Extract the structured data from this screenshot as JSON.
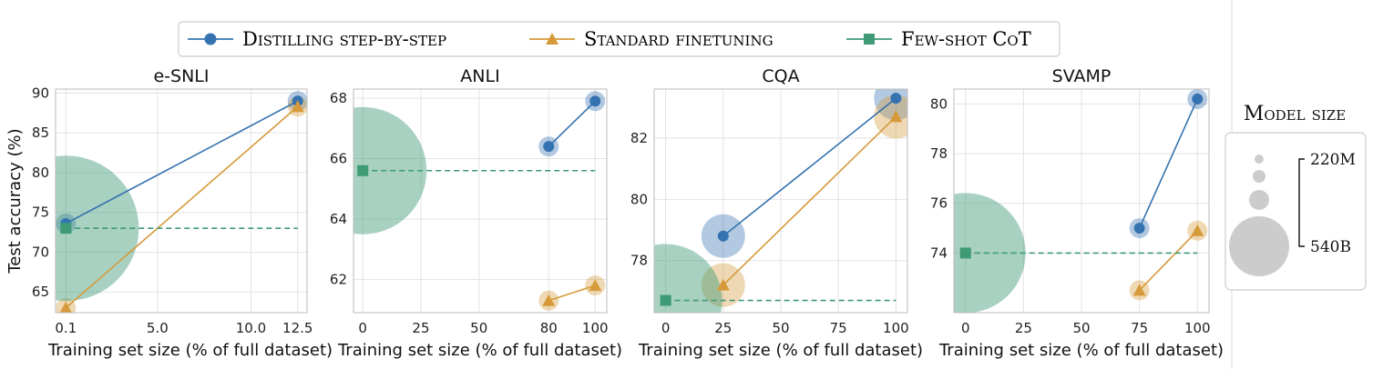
{
  "legend": {
    "items": [
      {
        "label": "Distilling step-by-step",
        "color": "#3572b0",
        "marker": "circle",
        "dash": false
      },
      {
        "label": "Standard finetuning",
        "color": "#d69a3a",
        "marker": "triangle",
        "dash": false
      },
      {
        "label": "Few-shot CoT",
        "color": "#3f9a76",
        "marker": "square",
        "dash": true
      }
    ]
  },
  "size_legend": {
    "title": "Model size",
    "top_label": "220M",
    "bottom_label": "540B"
  },
  "chart_data": [
    {
      "type": "scatter",
      "title": "e-SNLI",
      "xlabel": "Training set size (% of full dataset)",
      "ylabel": "Test accuracy (%)",
      "xlim": [
        -0.45,
        13.0
      ],
      "ylim": [
        62.4,
        90.5
      ],
      "xticks": [
        0.1,
        5.0,
        10.0,
        12.5
      ],
      "xtick_labels": [
        "0.1",
        "5.0",
        "10.0",
        "12.5"
      ],
      "yticks": [
        65,
        70,
        75,
        80,
        85,
        90
      ],
      "ytick_labels": [
        "65",
        "70",
        "75",
        "80",
        "85",
        "90"
      ],
      "grid": true,
      "series": [
        {
          "name": "Distilling step-by-step",
          "x": [
            0.1,
            12.5
          ],
          "y": [
            73.6,
            89.0
          ],
          "size": [
            "220M",
            "220M"
          ]
        },
        {
          "name": "Standard finetuning",
          "x": [
            0.1,
            12.5
          ],
          "y": [
            63.0,
            88.3
          ],
          "size": [
            "220M",
            "220M"
          ]
        },
        {
          "name": "Few-shot CoT",
          "x": [
            0.1,
            12.5
          ],
          "y": [
            73.0,
            73.0
          ],
          "size": [
            "540B",
            ""
          ]
        }
      ]
    },
    {
      "type": "scatter",
      "title": "ANLI",
      "xlabel": "Training set size (% of full dataset)",
      "ylabel": "",
      "xlim": [
        -4,
        105
      ],
      "ylim": [
        60.9,
        68.3
      ],
      "xticks": [
        0,
        25,
        50,
        80,
        100
      ],
      "xtick_labels": [
        "0",
        "25",
        "50",
        "80",
        "100"
      ],
      "yticks": [
        62,
        64,
        66,
        68
      ],
      "ytick_labels": [
        "62",
        "64",
        "66",
        "68"
      ],
      "grid": true,
      "series": [
        {
          "name": "Distilling step-by-step",
          "x": [
            80,
            100
          ],
          "y": [
            66.4,
            67.9
          ],
          "size": [
            "220M",
            "220M"
          ]
        },
        {
          "name": "Standard finetuning",
          "x": [
            80,
            100
          ],
          "y": [
            61.3,
            61.8
          ],
          "size": [
            "220M",
            "220M"
          ]
        },
        {
          "name": "Few-shot CoT",
          "x": [
            0,
            100
          ],
          "y": [
            65.6,
            65.6
          ],
          "size": [
            "540B",
            ""
          ]
        }
      ]
    },
    {
      "type": "scatter",
      "title": "CQA",
      "xlabel": "Training set size (% of full dataset)",
      "ylabel": "",
      "xlim": [
        -5,
        105
      ],
      "ylim": [
        76.3,
        83.6
      ],
      "xticks": [
        0,
        25,
        50,
        75,
        100
      ],
      "xtick_labels": [
        "0",
        "25",
        "50",
        "75",
        "100"
      ],
      "yticks": [
        78,
        80,
        82
      ],
      "ytick_labels": [
        "78",
        "80",
        "82"
      ],
      "grid": true,
      "series": [
        {
          "name": "Distilling step-by-step",
          "x": [
            25,
            100
          ],
          "y": [
            78.8,
            83.3
          ],
          "size": [
            "large",
            "large"
          ]
        },
        {
          "name": "Standard finetuning",
          "x": [
            25,
            100
          ],
          "y": [
            77.2,
            82.7
          ],
          "size": [
            "large",
            "large"
          ]
        },
        {
          "name": "Few-shot CoT",
          "x": [
            0,
            100
          ],
          "y": [
            76.7,
            76.7
          ],
          "size": [
            "540B",
            ""
          ]
        }
      ]
    },
    {
      "type": "scatter",
      "title": "SVAMP",
      "xlabel": "Training set size (% of full dataset)",
      "ylabel": "",
      "xlim": [
        -5,
        105
      ],
      "ylim": [
        71.6,
        80.6
      ],
      "xticks": [
        0,
        25,
        50,
        75,
        100
      ],
      "xtick_labels": [
        "0",
        "25",
        "50",
        "75",
        "100"
      ],
      "yticks": [
        74,
        76,
        78,
        80
      ],
      "ytick_labels": [
        "74",
        "76",
        "78",
        "80"
      ],
      "grid": true,
      "series": [
        {
          "name": "Distilling step-by-step",
          "x": [
            75,
            100
          ],
          "y": [
            75.0,
            80.2
          ],
          "size": [
            "220M",
            "220M"
          ]
        },
        {
          "name": "Standard finetuning",
          "x": [
            75,
            100
          ],
          "y": [
            72.5,
            74.9
          ],
          "size": [
            "220M",
            "220M"
          ]
        },
        {
          "name": "Few-shot CoT",
          "x": [
            0,
            100
          ],
          "y": [
            74.0,
            74.0
          ],
          "size": [
            "540B",
            ""
          ]
        }
      ]
    }
  ]
}
